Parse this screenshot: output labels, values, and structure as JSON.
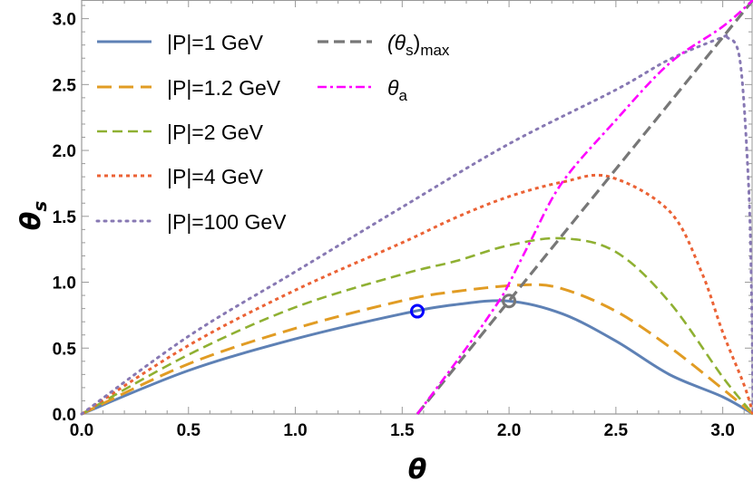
{
  "chart_data": {
    "type": "line",
    "xlabel": "θ",
    "ylabel": "θ",
    "ylabel_sub": "s",
    "xlim": [
      0,
      3.1416
    ],
    "ylim": [
      0,
      3.1416
    ],
    "x_ticks": [
      "0.0",
      "0.5",
      "1.0",
      "1.5",
      "2.0",
      "2.5",
      "3.0"
    ],
    "y_ticks": [
      "0.0",
      "0.5",
      "1.0",
      "1.5",
      "2.0",
      "2.5",
      "3.0"
    ],
    "grid": false,
    "legend_placement": "top-left",
    "series": [
      {
        "name": "|P|=1 GeV",
        "color": "#5E81B5",
        "style": "solid",
        "x": [
          0,
          0.5,
          1.0,
          1.5,
          1.75,
          2.0,
          2.25,
          2.5,
          2.75,
          3.0,
          3.1416
        ],
        "y": [
          0,
          0.33,
          0.57,
          0.76,
          0.83,
          0.857,
          0.76,
          0.554,
          0.3,
          0.13,
          0
        ]
      },
      {
        "name": "|P|=1.2 GeV",
        "color": "#E19C24",
        "style": "long-dash",
        "x": [
          0,
          0.5,
          1.0,
          1.5,
          1.75,
          2.07,
          2.25,
          2.5,
          2.75,
          3.0,
          3.1416
        ],
        "y": [
          0,
          0.38,
          0.65,
          0.86,
          0.93,
          0.98,
          0.95,
          0.78,
          0.51,
          0.19,
          0
        ]
      },
      {
        "name": "|P|=2 GeV",
        "color": "#8FB032",
        "style": "dash",
        "x": [
          0,
          0.5,
          1.0,
          1.5,
          1.75,
          2.0,
          2.25,
          2.5,
          2.75,
          3.0,
          3.1416
        ],
        "y": [
          0,
          0.45,
          0.81,
          1.06,
          1.16,
          1.28,
          1.333,
          1.23,
          0.85,
          0.28,
          0
        ]
      },
      {
        "name": "|P|=4 GeV",
        "color": "#EB6235",
        "style": "short-dash",
        "x": [
          0,
          0.5,
          1.0,
          1.5,
          1.75,
          2.0,
          2.25,
          2.47,
          2.75,
          2.9,
          3.0,
          3.1,
          3.1416
        ],
        "y": [
          0,
          0.52,
          0.94,
          1.3,
          1.49,
          1.65,
          1.76,
          1.8,
          1.54,
          1.08,
          0.62,
          0.22,
          0
        ]
      },
      {
        "name": "|P|=100 GeV",
        "color": "#8778B3",
        "style": "dotted",
        "x": [
          0,
          0.5,
          1.0,
          1.5,
          2.0,
          2.5,
          2.75,
          3.0,
          3.02,
          3.08,
          3.12,
          3.135,
          3.1416
        ],
        "y": [
          0,
          0.59,
          1.08,
          1.57,
          2.05,
          2.46,
          2.69,
          2.86,
          2.86,
          2.69,
          1.77,
          0.9,
          0
        ]
      },
      {
        "name": "(θs)max",
        "name_main": "(θ",
        "name_sub": "s",
        "name_tail": ")",
        "name_sub2": "max",
        "color": "#777777",
        "style": "thick-dash",
        "x": [
          1.5708,
          3.1416
        ],
        "y": [
          0,
          3.1416
        ]
      },
      {
        "name": "θa",
        "name_main": "θ",
        "name_sub": "a",
        "color": "#FF00FF",
        "style": "dash-dot",
        "x": [
          1.5708,
          1.8,
          1.95,
          2.0,
          2.1,
          2.25,
          2.5,
          2.75,
          3.0,
          3.1416
        ],
        "y": [
          0,
          0.5,
          0.85,
          0.99,
          1.31,
          1.76,
          2.23,
          2.66,
          2.94,
          3.1416
        ]
      }
    ],
    "markers": [
      {
        "x": 1.5708,
        "y": 0.78,
        "color": "#0000FF",
        "shape": "open-circle"
      },
      {
        "x": 2.0,
        "y": 0.858,
        "color": "#777777",
        "shape": "open-circle"
      }
    ]
  }
}
